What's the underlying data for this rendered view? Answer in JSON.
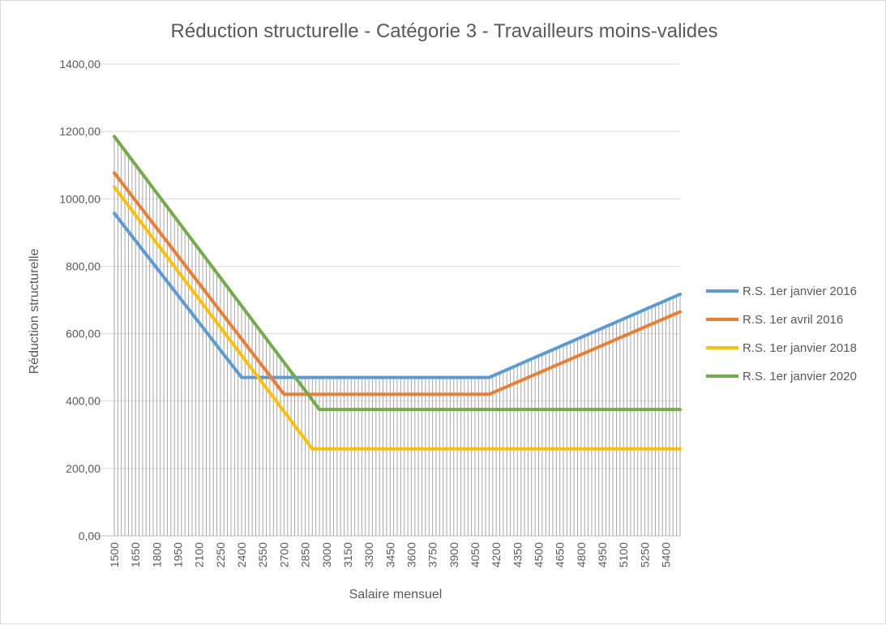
{
  "chart_data": {
    "type": "line",
    "title": "Réduction structurelle - Catégorie 3 - Travailleurs moins-valides",
    "xlabel": "Salaire mensuel",
    "ylabel": "Réduction structurelle",
    "ylim": [
      0,
      1400
    ],
    "yticks": [
      "0,00",
      "200,00",
      "400,00",
      "600,00",
      "800,00",
      "1000,00",
      "1200,00",
      "1400,00"
    ],
    "x_range": [
      1500,
      5500
    ],
    "x_step": 25,
    "xtick_labels": [
      "1500",
      "1650",
      "1800",
      "1950",
      "2100",
      "2250",
      "2400",
      "2550",
      "2700",
      "2850",
      "3000",
      "3150",
      "3300",
      "3450",
      "3600",
      "3750",
      "3900",
      "4050",
      "4200",
      "4350",
      "4500",
      "4650",
      "4800",
      "4950",
      "5100",
      "5250",
      "5400"
    ],
    "drop_lines": true,
    "grid": "horizontal",
    "legend_position": "right",
    "series": [
      {
        "name": "R.S. 1er janvier 2016",
        "color": "#5b9bd5",
        "points": [
          [
            1500,
            957
          ],
          [
            2400,
            470
          ],
          [
            4150,
            470
          ],
          [
            5500,
            717
          ]
        ]
      },
      {
        "name": "R.S. 1er avril 2016",
        "color": "#ed7d31",
        "points": [
          [
            1500,
            1077
          ],
          [
            2700,
            420
          ],
          [
            4150,
            420
          ],
          [
            5500,
            665
          ]
        ]
      },
      {
        "name": "R.S. 1er janvier 2018",
        "color": "#ffc000",
        "points": [
          [
            1500,
            1035
          ],
          [
            2900,
            258
          ],
          [
            5500,
            258
          ]
        ]
      },
      {
        "name": "R.S. 1er janvier 2020",
        "color": "#70ad47",
        "points": [
          [
            1500,
            1185
          ],
          [
            2950,
            375
          ],
          [
            5500,
            375
          ]
        ]
      }
    ]
  }
}
